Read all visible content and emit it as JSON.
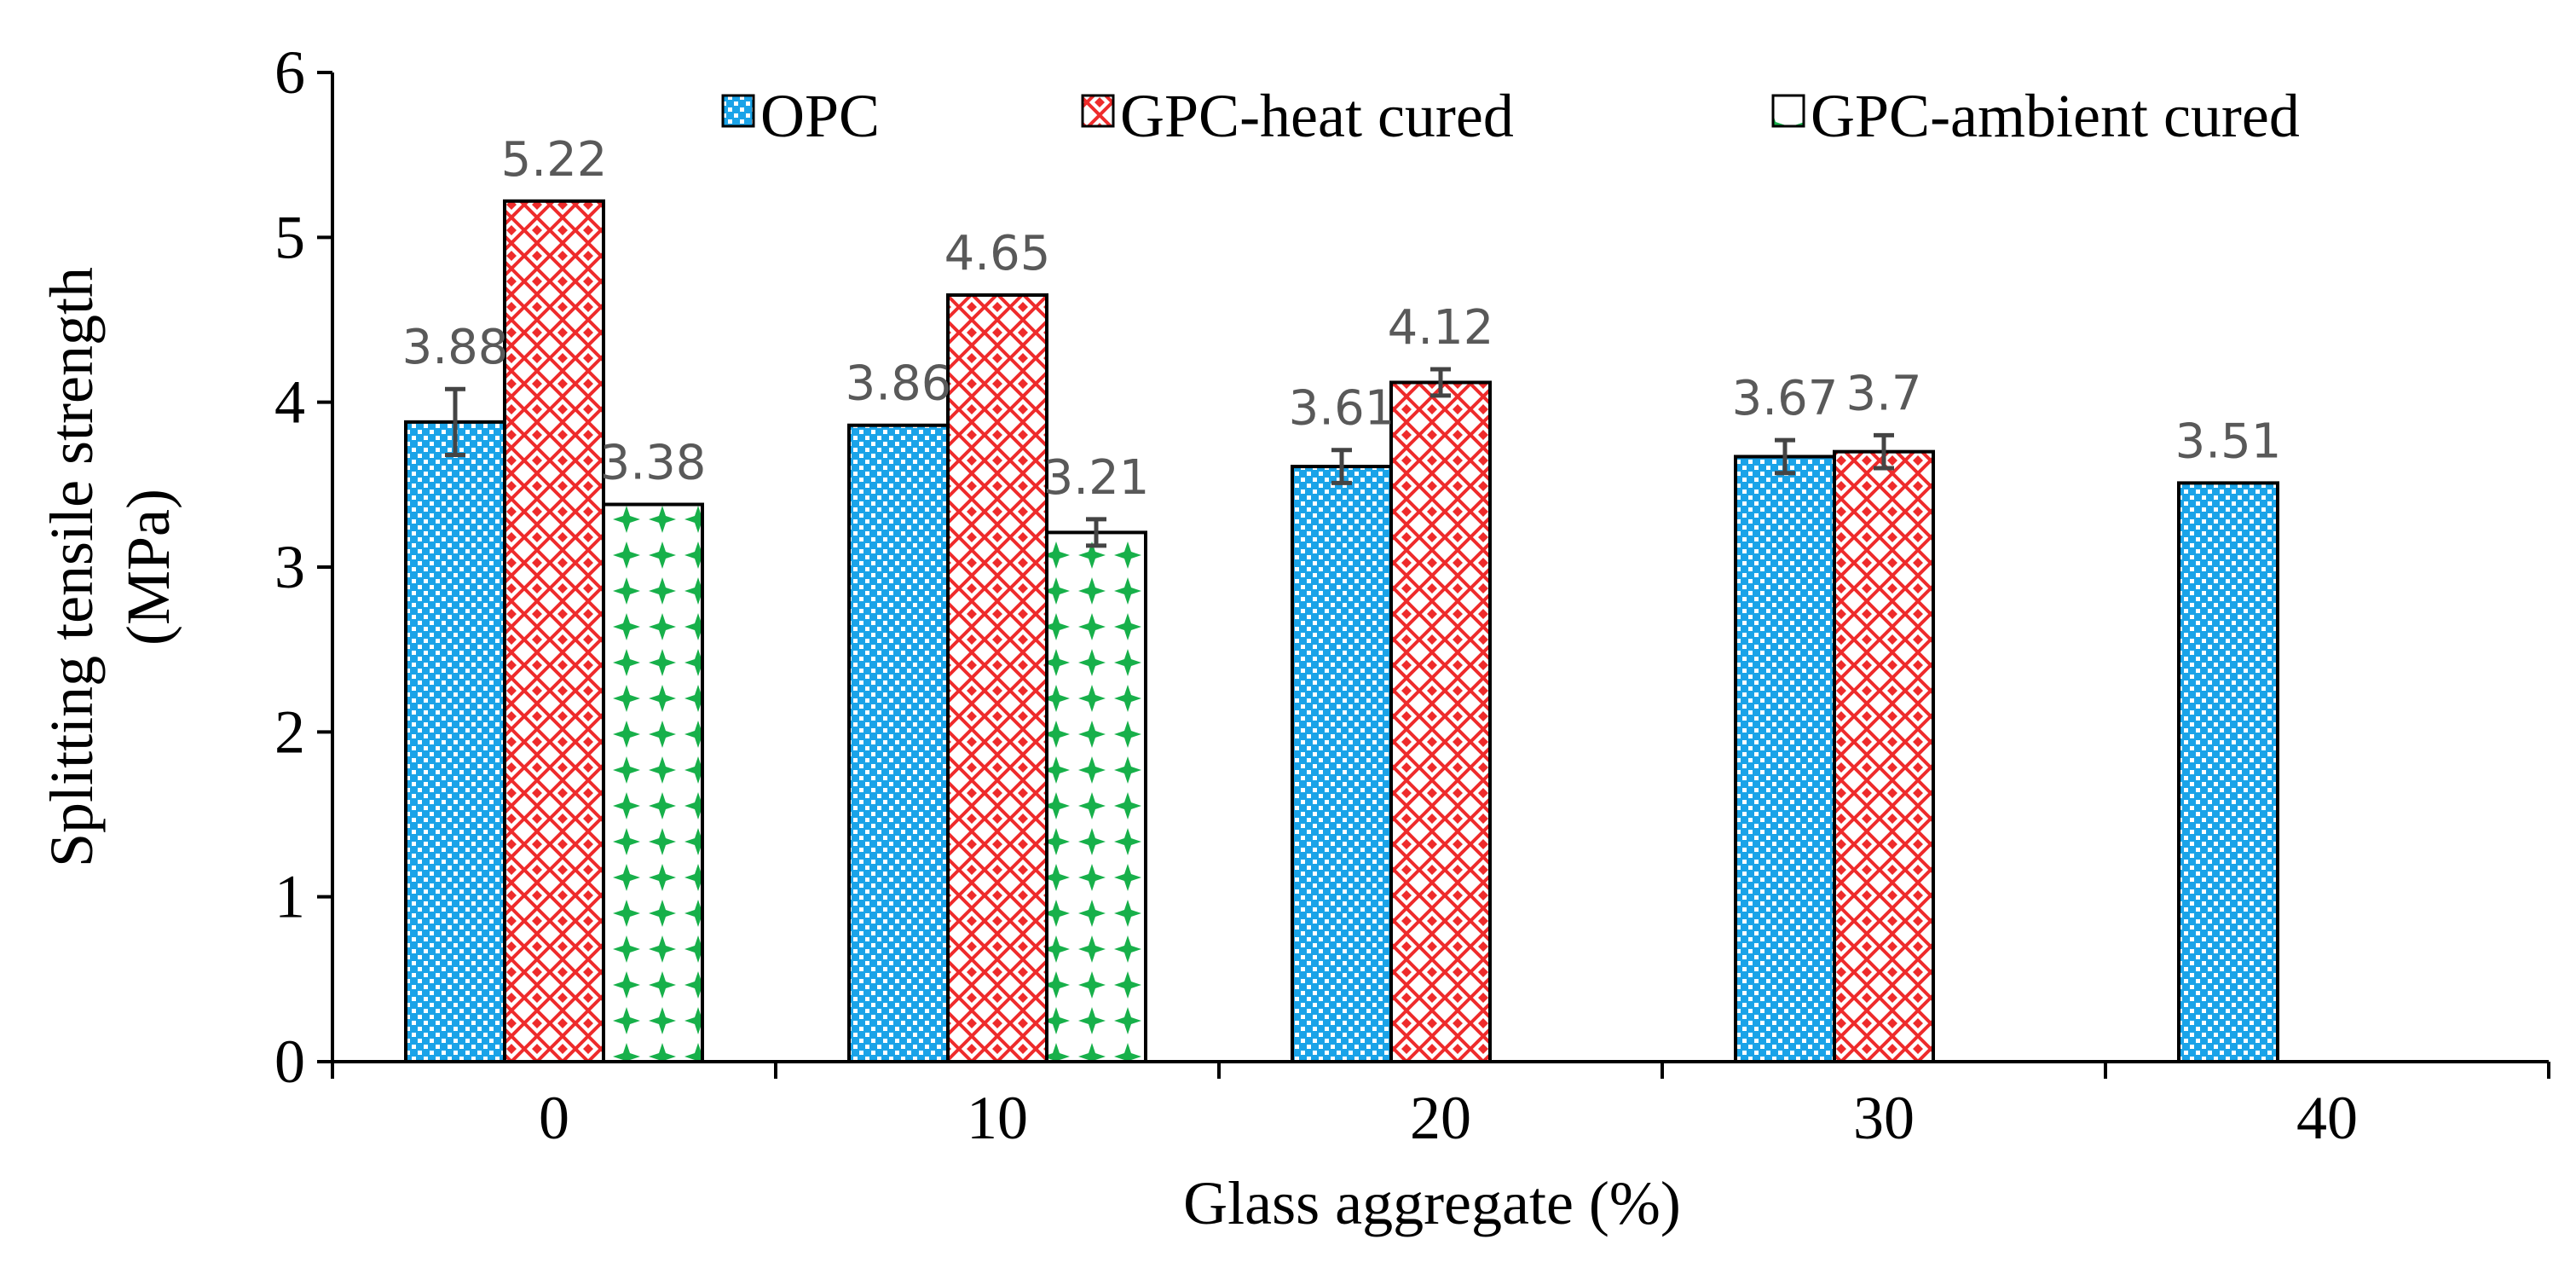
{
  "chart_data": {
    "type": "bar",
    "title": "",
    "xlabel": "Glass aggregate (%)",
    "ylabel_line1": "Splitting tensile strength",
    "ylabel_line2": "(MPa)",
    "ylim": [
      0,
      6
    ],
    "yticks": [
      "0",
      "1",
      "2",
      "3",
      "4",
      "5",
      "6"
    ],
    "categories": [
      "0",
      "10",
      "20",
      "30",
      "40"
    ],
    "legend_position": "top",
    "grid": false,
    "series": [
      {
        "name": "OPC",
        "color": "#1aa3e8",
        "values": [
          3.88,
          3.86,
          3.61,
          3.67,
          3.51
        ],
        "labels": [
          "3.88",
          "3.86",
          "3.61",
          "3.67",
          "3.51"
        ],
        "errors": [
          0.2,
          0,
          0.1,
          0.1,
          0
        ]
      },
      {
        "name": "GPC-heat cured",
        "color": "#ee2b2b",
        "values": [
          5.22,
          4.65,
          4.12,
          3.7,
          null
        ],
        "labels": [
          "5.22",
          "4.65",
          "4.12",
          "3.7",
          ""
        ],
        "errors": [
          0,
          0,
          0.08,
          0.1,
          0
        ]
      },
      {
        "name": "GPC-ambient cured",
        "color": "#17b04a",
        "values": [
          3.38,
          3.21,
          null,
          null,
          null
        ],
        "labels": [
          "3.38",
          "3.21",
          "",
          "",
          ""
        ],
        "errors": [
          0,
          0.08,
          0,
          0,
          0
        ]
      }
    ]
  }
}
